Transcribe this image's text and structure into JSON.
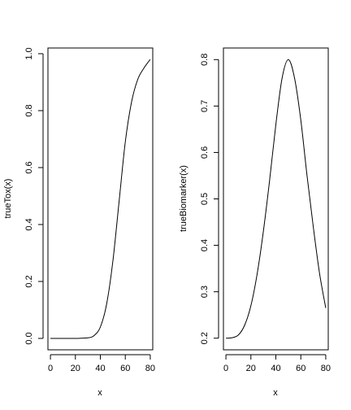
{
  "chart_data": [
    {
      "type": "line",
      "xlabel": "x",
      "ylabel": "trueTox(x)",
      "xlim": [
        -2,
        82
      ],
      "ylim": [
        -0.04,
        1.02
      ],
      "xticks": [
        0,
        20,
        40,
        60,
        80
      ],
      "yticks": [
        0.0,
        0.2,
        0.4,
        0.6,
        0.8,
        1.0
      ],
      "xtick_labels": [
        "0",
        "20",
        "40",
        "60",
        "80"
      ],
      "ytick_labels": [
        "0.0",
        "0.2",
        "0.4",
        "0.6",
        "0.8",
        "1.0"
      ],
      "series": [
        {
          "x": [
            0,
            10,
            20,
            30,
            35,
            40,
            45,
            50,
            55,
            60,
            65,
            70,
            75,
            80
          ],
          "y": [
            0.0,
            0.0,
            0.0,
            0.002,
            0.01,
            0.04,
            0.12,
            0.27,
            0.48,
            0.69,
            0.83,
            0.91,
            0.95,
            0.98
          ]
        }
      ]
    },
    {
      "type": "line",
      "xlabel": "x",
      "ylabel": "trueBiomarker(x)",
      "xlim": [
        -2,
        82
      ],
      "ylim": [
        0.175,
        0.825
      ],
      "xticks": [
        0,
        20,
        40,
        60,
        80
      ],
      "yticks": [
        0.2,
        0.3,
        0.4,
        0.5,
        0.6,
        0.7,
        0.8
      ],
      "xtick_labels": [
        "0",
        "20",
        "40",
        "60",
        "80"
      ],
      "ytick_labels": [
        "0.2",
        "0.3",
        "0.4",
        "0.5",
        "0.6",
        "0.7",
        "0.8"
      ],
      "series": [
        {
          "x": [
            0,
            5,
            10,
            15,
            20,
            25,
            30,
            35,
            40,
            45,
            50,
            55,
            60,
            65,
            70,
            75,
            80
          ],
          "y": [
            0.2,
            0.201,
            0.207,
            0.228,
            0.27,
            0.338,
            0.43,
            0.54,
            0.66,
            0.76,
            0.8,
            0.76,
            0.67,
            0.55,
            0.44,
            0.34,
            0.265
          ]
        }
      ]
    }
  ]
}
